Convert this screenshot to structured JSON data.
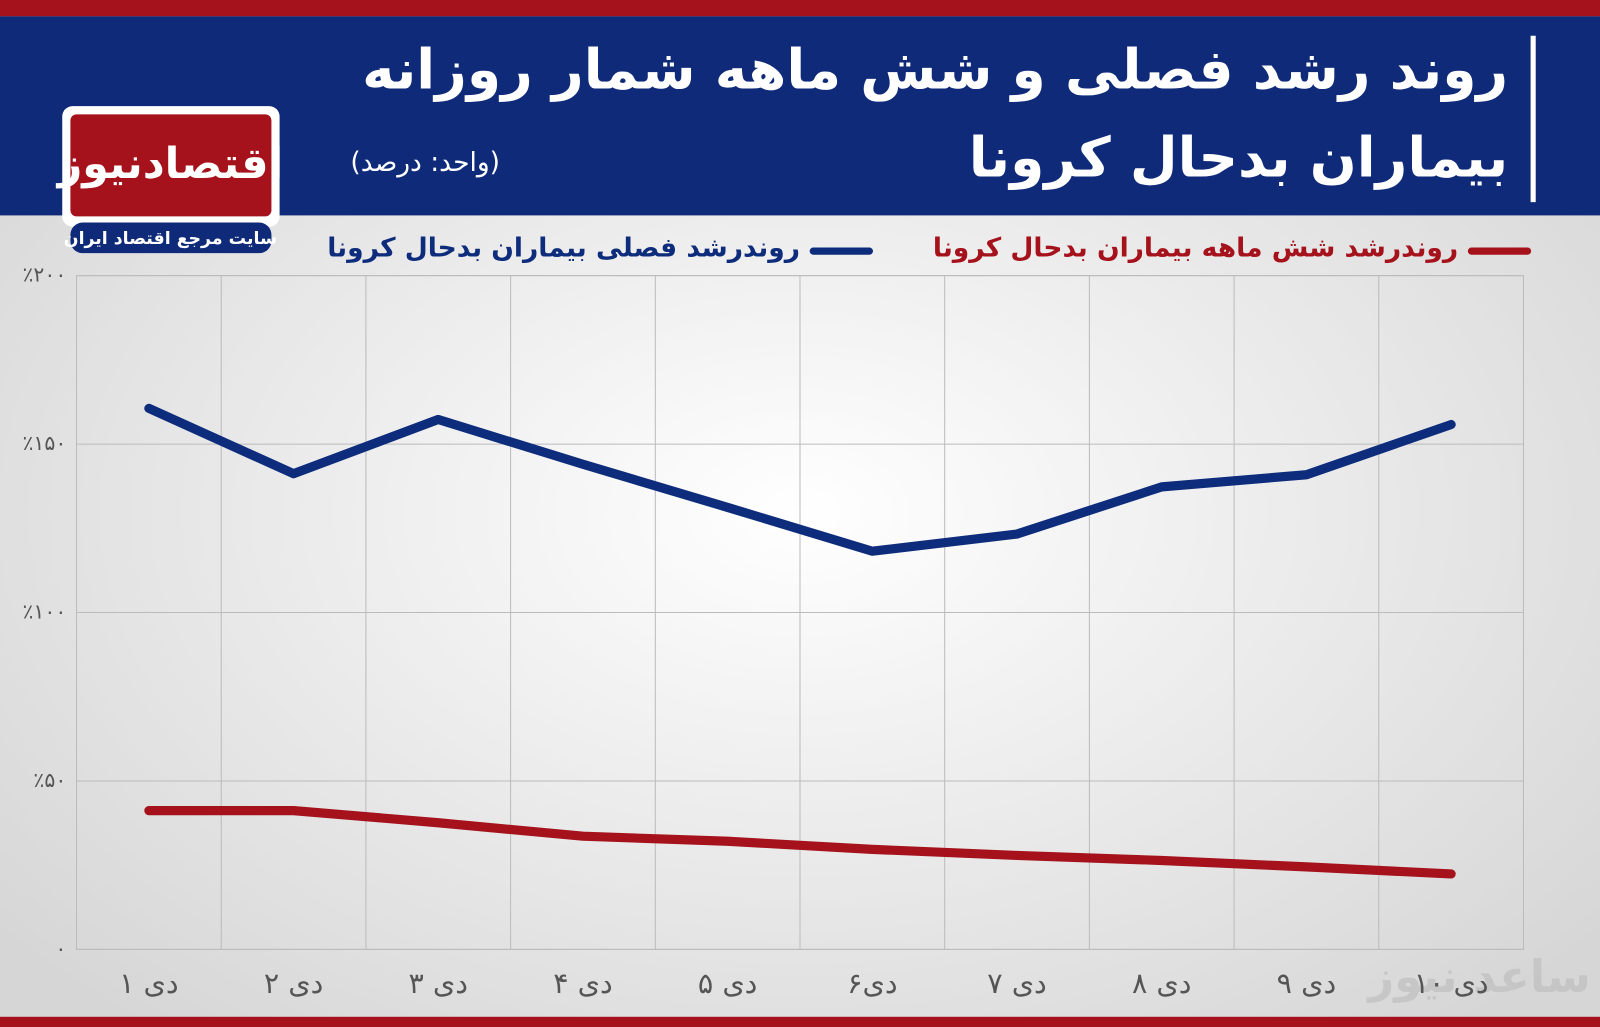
{
  "chart_data": {
    "type": "line",
    "title": [
      "روند رشد فصلی و شش ماهه شمار روزانه",
      "بیماران بدحال کرونا"
    ],
    "subtitle": "(واحد: درصد)",
    "logo": "اقتصادنیوز",
    "logo_tagline": "سایت مرجع اقتصاد ایران",
    "watermark": "ساعد نیوز",
    "categories": [
      "۱ دی",
      "۲ دی",
      "۳ دی",
      "۴ دی",
      "۵ دی",
      "۶دی",
      "۷ دی",
      "۸ دی",
      "۹ دی",
      "۱۰ دی"
    ],
    "series": [
      {
        "name": "روندرشد شش ماهه بیماران بدحال کرونا",
        "color": "#a5121b",
        "values": [
          41.2,
          41.2,
          37.6,
          33.6,
          32.1,
          29.7,
          27.9,
          26.4,
          24.5,
          22.4
        ]
      },
      {
        "name": "روندرشد فصلی بیماران بدحال کرونا",
        "color": "#0e2c7c",
        "values": [
          160.6,
          141.2,
          157.3,
          144,
          131.2,
          118.2,
          123.3,
          137.3,
          140.9,
          155.8
        ]
      }
    ],
    "ylim": [
      0,
      200
    ],
    "yticks": [
      {
        "value": 0,
        "label": "۰"
      },
      {
        "value": 50,
        "label": "٪۵۰"
      },
      {
        "value": 100,
        "label": "٪۱۰۰"
      },
      {
        "value": 150,
        "label": "٪۱۵۰"
      },
      {
        "value": 200,
        "label": "٪۲۰۰"
      }
    ],
    "grid": true,
    "legend": "top"
  }
}
